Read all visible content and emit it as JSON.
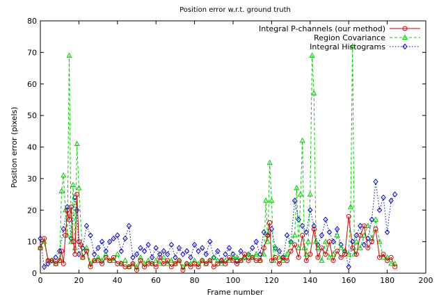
{
  "chart_data": {
    "type": "line",
    "title": "Position error w.r.t. ground truth",
    "xlabel": "Frame number",
    "ylabel": "Position error (pixels)",
    "xlim": [
      0,
      200
    ],
    "ylim": [
      0,
      80
    ],
    "xticks": [
      0,
      20,
      40,
      60,
      80,
      100,
      120,
      140,
      160,
      180,
      200
    ],
    "yticks": [
      0,
      10,
      20,
      30,
      40,
      50,
      60,
      70,
      80
    ],
    "grid": false,
    "legend_position": "top-right",
    "series": [
      {
        "name": "Integral P-channels (our method)",
        "color": "#cc0000",
        "marker": "circle",
        "dash": "solid",
        "x": [
          0,
          2,
          4,
          6,
          8,
          10,
          11,
          12,
          13,
          14,
          15,
          16,
          17,
          18,
          19,
          20,
          21,
          22,
          24,
          26,
          28,
          30,
          32,
          34,
          36,
          38,
          40,
          42,
          44,
          46,
          48,
          50,
          52,
          54,
          56,
          58,
          60,
          62,
          64,
          66,
          68,
          70,
          72,
          74,
          76,
          78,
          80,
          82,
          84,
          86,
          88,
          90,
          92,
          94,
          96,
          98,
          100,
          102,
          104,
          106,
          108,
          110,
          112,
          114,
          116,
          118,
          119,
          120,
          122,
          124,
          126,
          128,
          130,
          132,
          134,
          136,
          138,
          140,
          142,
          144,
          146,
          148,
          150,
          152,
          154,
          156,
          158,
          160,
          162,
          164,
          166,
          168,
          170,
          172,
          174,
          176,
          178,
          180,
          182,
          184
        ],
        "y": [
          8,
          11,
          4,
          4,
          3,
          4,
          7,
          3,
          12,
          20,
          17,
          21,
          10,
          6,
          25,
          10,
          9,
          5,
          7,
          2,
          4,
          4,
          3,
          5,
          4,
          5,
          3,
          3,
          2,
          2,
          3,
          1,
          4,
          2,
          3,
          3,
          2,
          5,
          3,
          4,
          2,
          3,
          4,
          1,
          3,
          2,
          3,
          2,
          4,
          3,
          4,
          2,
          3,
          4,
          3,
          5,
          4,
          3,
          4,
          6,
          4,
          5,
          4,
          4,
          8,
          12,
          16,
          4,
          5,
          3,
          5,
          4,
          7,
          9,
          5,
          12,
          4,
          6,
          14,
          5,
          8,
          6,
          10,
          4,
          7,
          5,
          6,
          18,
          8,
          6,
          12,
          15,
          8,
          10,
          14,
          5,
          6,
          4,
          5,
          2
        ]
      },
      {
        "name": "Region Covariance",
        "color": "#00cc00",
        "marker": "triangle",
        "dash": "dashed",
        "x": [
          0,
          2,
          4,
          6,
          8,
          10,
          11,
          12,
          13,
          14,
          15,
          16,
          17,
          18,
          19,
          20,
          22,
          24,
          26,
          28,
          30,
          32,
          34,
          36,
          38,
          40,
          42,
          44,
          46,
          48,
          50,
          52,
          54,
          56,
          58,
          60,
          62,
          64,
          66,
          68,
          70,
          72,
          74,
          76,
          78,
          80,
          82,
          84,
          86,
          88,
          90,
          92,
          94,
          96,
          98,
          100,
          102,
          104,
          106,
          108,
          110,
          112,
          114,
          116,
          117,
          118,
          119,
          120,
          121,
          122,
          124,
          126,
          128,
          130,
          132,
          133,
          134,
          135,
          136,
          137,
          138,
          139,
          140,
          141,
          142,
          143,
          144,
          146,
          148,
          150,
          152,
          154,
          156,
          158,
          160,
          161,
          162,
          163,
          164,
          166,
          168,
          170,
          172,
          174,
          176,
          178,
          180,
          182,
          184
        ],
        "y": [
          8,
          10,
          4,
          4,
          3,
          4,
          26,
          31,
          20,
          12,
          69,
          10,
          28,
          8,
          41,
          27,
          5,
          8,
          3,
          4,
          5,
          4,
          6,
          4,
          4,
          6,
          3,
          4,
          2,
          3,
          2,
          5,
          3,
          4,
          3,
          4,
          3,
          5,
          3,
          4,
          3,
          4,
          2,
          3,
          3,
          4,
          3,
          4,
          3,
          4,
          5,
          4,
          3,
          4,
          4,
          5,
          5,
          4,
          5,
          6,
          5,
          6,
          4,
          6,
          23,
          10,
          35,
          23,
          4,
          8,
          5,
          4,
          6,
          10,
          12,
          27,
          8,
          25,
          42,
          8,
          6,
          10,
          25,
          69,
          57,
          10,
          8,
          4,
          10,
          5,
          6,
          12,
          8,
          7,
          6,
          21,
          72,
          6,
          10,
          8,
          12,
          15,
          11,
          17,
          10,
          5,
          5,
          3,
          3
        ]
      },
      {
        "name": "Integral Histograms",
        "color": "#0000cc",
        "marker": "diamond",
        "dash": "dotted",
        "x": [
          0,
          2,
          4,
          6,
          8,
          10,
          12,
          14,
          16,
          18,
          19,
          20,
          22,
          24,
          26,
          28,
          30,
          32,
          34,
          36,
          38,
          40,
          42,
          44,
          46,
          48,
          50,
          52,
          54,
          56,
          58,
          60,
          62,
          64,
          66,
          68,
          70,
          72,
          74,
          76,
          78,
          80,
          82,
          84,
          86,
          88,
          90,
          92,
          94,
          96,
          98,
          100,
          102,
          104,
          106,
          108,
          110,
          112,
          114,
          116,
          118,
          120,
          122,
          124,
          126,
          128,
          130,
          132,
          134,
          136,
          138,
          140,
          142,
          144,
          146,
          148,
          150,
          152,
          154,
          156,
          158,
          160,
          162,
          164,
          166,
          168,
          170,
          172,
          174,
          176,
          178,
          180,
          182,
          184
        ],
        "y": [
          11,
          2,
          3,
          4,
          5,
          7,
          14,
          21,
          11,
          24,
          20,
          6,
          8,
          15,
          12,
          6,
          8,
          10,
          7,
          10,
          11,
          12,
          7,
          11,
          15,
          5,
          6,
          8,
          7,
          9,
          5,
          8,
          6,
          7,
          6,
          9,
          5,
          8,
          6,
          7,
          5,
          9,
          7,
          8,
          6,
          10,
          5,
          7,
          4,
          6,
          8,
          6,
          4,
          7,
          5,
          6,
          8,
          10,
          6,
          13,
          12,
          14,
          8,
          7,
          5,
          12,
          10,
          23,
          17,
          15,
          13,
          20,
          15,
          9,
          12,
          17,
          13,
          10,
          14,
          9,
          7,
          2,
          10,
          12,
          15,
          9,
          11,
          17,
          29,
          20,
          24,
          13,
          23,
          25
        ]
      }
    ]
  }
}
